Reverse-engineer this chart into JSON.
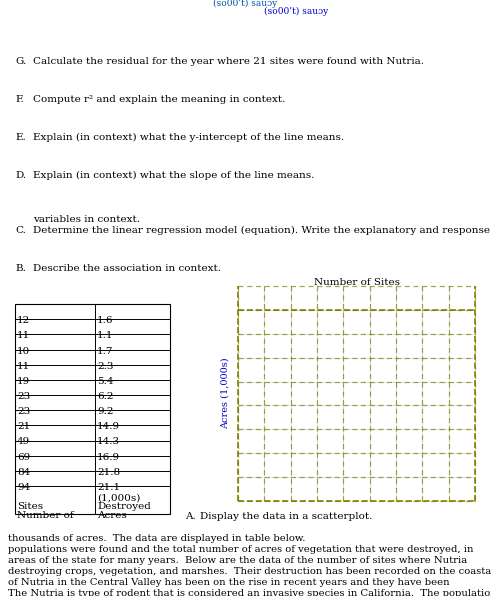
{
  "paragraph": "The Nutria is type of rodent that is considered an invasive species in California.  The population of Nutria in the Central Valley has been on the rise in recent years and they have been destroying crops, vegetation, and marshes.  Their destruction has been recorded on the coastal areas of the state for many years.  Below are the data of the number of sites where Nutria populations were found and the total number of acres of vegetation that were destroyed, in thousands of acres.  The data are displayed in table below.",
  "sites": [
    94,
    84,
    69,
    49,
    21,
    23,
    23,
    19,
    11,
    10,
    11,
    12
  ],
  "acres": [
    21.1,
    21.8,
    16.9,
    14.3,
    14.9,
    9.2,
    6.2,
    5.4,
    2.3,
    1.7,
    1.1,
    1.6
  ],
  "col1_header": [
    "Number of",
    "Sites"
  ],
  "col2_header": [
    "Acres",
    "Destroyed",
    "(1,000s)"
  ],
  "section_A": "A.",
  "section_A_text": "Display the data in a scatterplot.",
  "section_B": "B.",
  "section_B_text": "Describe the association in context.",
  "section_C": "C.",
  "section_C_text": "Determine the linear regression model (equation). Write the explanatory and response\n    variables in context.",
  "section_D": "D.",
  "section_D_text": "Explain (in context) what the slope of the line means.",
  "section_E": "E.",
  "section_E_text": "Explain (in context) what the y-intercept of the line means.",
  "section_F": "F.",
  "section_F_text": "Compute r² and explain the meaning in context.",
  "section_G": "G.",
  "section_G_text": "Calculate the residual for the year where 21 sites were found with Nutria.",
  "xlabel": "Number of Sites",
  "ylabel": "Acres (1,000s)",
  "grid_color": "#aaaaaa",
  "border_color": "#808000",
  "text_color": "#000000",
  "highlight_color": "#cc0000",
  "body_fontsize": 8.5,
  "table_fontsize": 8.5,
  "section_fontsize": 8.5
}
